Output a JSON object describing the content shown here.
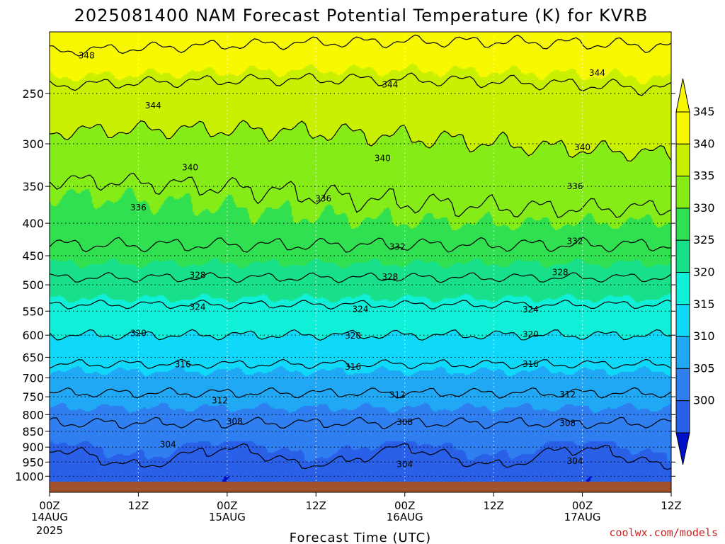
{
  "chart_data": {
    "type": "heatmap",
    "title": "2025081400 NAM Forecast Potential Temperature (K) for KVRB",
    "xlabel": "Forecast Time (UTC)",
    "ylabel": "",
    "y_ticks": [
      "250",
      "300",
      "350",
      "400",
      "450",
      "500",
      "550",
      "600",
      "650",
      "700",
      "750",
      "800",
      "850",
      "900",
      "950",
      "1000"
    ],
    "y_tick_values": [
      250,
      300,
      350,
      400,
      450,
      500,
      550,
      600,
      650,
      700,
      750,
      800,
      850,
      900,
      950,
      1000
    ],
    "ylim": [
      200,
      1020
    ],
    "y_scale": "log",
    "x_ticks": [
      {
        "hour": 0,
        "label": "00Z",
        "sub": "14AUG",
        "sub2": "2025"
      },
      {
        "hour": 12,
        "label": "12Z",
        "sub": "",
        "sub2": ""
      },
      {
        "hour": 24,
        "label": "00Z",
        "sub": "15AUG",
        "sub2": ""
      },
      {
        "hour": 36,
        "label": "12Z",
        "sub": "",
        "sub2": ""
      },
      {
        "hour": 48,
        "label": "00Z",
        "sub": "16AUG",
        "sub2": ""
      },
      {
        "hour": 60,
        "label": "12Z",
        "sub": "",
        "sub2": ""
      },
      {
        "hour": 72,
        "label": "00Z",
        "sub": "17AUG",
        "sub2": ""
      },
      {
        "hour": 84,
        "label": "12Z",
        "sub": "",
        "sub2": ""
      }
    ],
    "xlim": [
      0,
      84
    ],
    "grid": true,
    "colorbar": {
      "labels": [
        "345",
        "340",
        "335",
        "330",
        "325",
        "320",
        "315",
        "310",
        "305",
        "300"
      ],
      "levels": [
        300,
        305,
        310,
        315,
        320,
        325,
        330,
        335,
        340,
        345
      ],
      "colors": [
        "#1a40d8",
        "#2a60e8",
        "#2f7ff0",
        "#20a8f4",
        "#10d8f8",
        "#10f0d8",
        "#18e08a",
        "#30e050",
        "#86ec18",
        "#c8f000",
        "#f8f800"
      ],
      "under_color": "#0010c8",
      "over_color": "#f8f800",
      "ground_color": "#a0522d"
    },
    "profile": [
      {
        "pressure": 1000,
        "theta": 301.5
      },
      {
        "pressure": 950,
        "theta": 303.5
      },
      {
        "pressure": 900,
        "theta": 305
      },
      {
        "pressure": 850,
        "theta": 307
      },
      {
        "pressure": 800,
        "theta": 309
      },
      {
        "pressure": 750,
        "theta": 311.5
      },
      {
        "pressure": 700,
        "theta": 314
      },
      {
        "pressure": 650,
        "theta": 317
      },
      {
        "pressure": 600,
        "theta": 320
      },
      {
        "pressure": 550,
        "theta": 323
      },
      {
        "pressure": 500,
        "theta": 327
      },
      {
        "pressure": 450,
        "theta": 331
      },
      {
        "pressure": 400,
        "theta": 334
      },
      {
        "pressure": 350,
        "theta": 336.5
      },
      {
        "pressure": 300,
        "theta": 340
      },
      {
        "pressure": 250,
        "theta": 343.5
      },
      {
        "pressure": 200,
        "theta": 350
      }
    ],
    "contour_levels": [
      304,
      308,
      312,
      316,
      320,
      324,
      328,
      332,
      336,
      340,
      344,
      348
    ],
    "contour_labels": [
      {
        "text": "348",
        "hour": 5,
        "pressure": 218
      },
      {
        "text": "344",
        "hour": 14,
        "pressure": 261
      },
      {
        "text": "344",
        "hour": 46,
        "pressure": 242
      },
      {
        "text": "344",
        "hour": 74,
        "pressure": 232
      },
      {
        "text": "340",
        "hour": 19,
        "pressure": 327
      },
      {
        "text": "340",
        "hour": 45,
        "pressure": 316
      },
      {
        "text": "340",
        "hour": 72,
        "pressure": 304
      },
      {
        "text": "336",
        "hour": 12,
        "pressure": 378
      },
      {
        "text": "336",
        "hour": 37,
        "pressure": 366
      },
      {
        "text": "336",
        "hour": 71,
        "pressure": 350
      },
      {
        "text": "332",
        "hour": 47,
        "pressure": 436
      },
      {
        "text": "332",
        "hour": 71,
        "pressure": 427
      },
      {
        "text": "328",
        "hour": 20,
        "pressure": 483
      },
      {
        "text": "328",
        "hour": 46,
        "pressure": 486
      },
      {
        "text": "328",
        "hour": 69,
        "pressure": 478
      },
      {
        "text": "324",
        "hour": 20,
        "pressure": 542
      },
      {
        "text": "324",
        "hour": 42,
        "pressure": 546
      },
      {
        "text": "324",
        "hour": 65,
        "pressure": 547
      },
      {
        "text": "320",
        "hour": 12,
        "pressure": 596
      },
      {
        "text": "320",
        "hour": 41,
        "pressure": 601
      },
      {
        "text": "320",
        "hour": 65,
        "pressure": 598
      },
      {
        "text": "316",
        "hour": 18,
        "pressure": 667
      },
      {
        "text": "316",
        "hour": 41,
        "pressure": 673
      },
      {
        "text": "316",
        "hour": 65,
        "pressure": 666
      },
      {
        "text": "312",
        "hour": 23,
        "pressure": 760
      },
      {
        "text": "312",
        "hour": 47,
        "pressure": 745
      },
      {
        "text": "312",
        "hour": 70,
        "pressure": 744
      },
      {
        "text": "308",
        "hour": 25,
        "pressure": 820
      },
      {
        "text": "308",
        "hour": 48,
        "pressure": 822
      },
      {
        "text": "308",
        "hour": 70,
        "pressure": 825
      },
      {
        "text": "304",
        "hour": 16,
        "pressure": 892
      },
      {
        "text": "304",
        "hour": 48,
        "pressure": 958
      },
      {
        "text": "304",
        "hour": 71,
        "pressure": 947
      }
    ]
  },
  "credit": "coolwx.com/models"
}
